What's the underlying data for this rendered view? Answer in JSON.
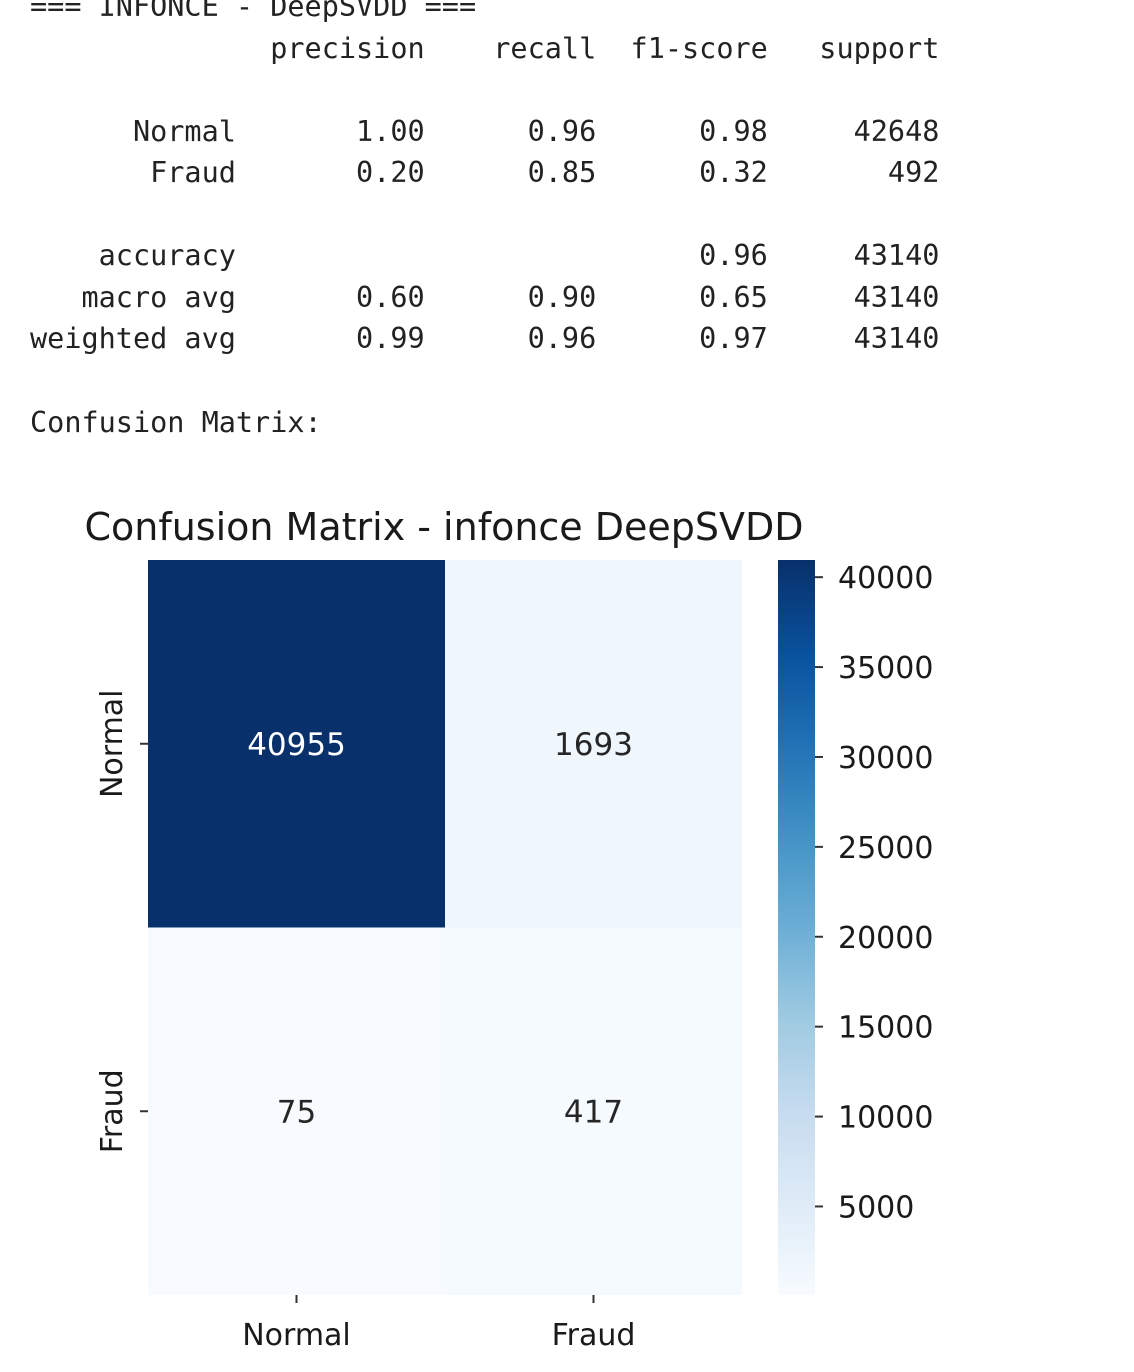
{
  "report": {
    "header": "=== INFONCE - DeepSVDD ===",
    "columns": [
      "precision",
      "recall",
      "f1-score",
      "support"
    ],
    "rows": [
      {
        "label": "Normal",
        "precision": "1.00",
        "recall": "0.96",
        "f1": "0.98",
        "support": "42648"
      },
      {
        "label": "Fraud",
        "precision": "0.20",
        "recall": "0.85",
        "f1": "0.32",
        "support": "492"
      },
      {
        "label": "",
        "precision": "",
        "recall": "",
        "f1": "",
        "support": ""
      },
      {
        "label": "accuracy",
        "precision": "",
        "recall": "",
        "f1": "0.96",
        "support": "43140"
      },
      {
        "label": "macro avg",
        "precision": "0.60",
        "recall": "0.90",
        "f1": "0.65",
        "support": "43140"
      },
      {
        "label": "weighted avg",
        "precision": "0.99",
        "recall": "0.96",
        "f1": "0.97",
        "support": "43140"
      }
    ],
    "confusion_label": "Confusion Matrix:"
  },
  "chart_data": {
    "type": "heatmap",
    "title": "Confusion Matrix - infonce DeepSVDD",
    "row_labels": [
      "Normal",
      "Fraud"
    ],
    "col_labels": [
      "Normal",
      "Fraud"
    ],
    "values": [
      [
        40955,
        1693
      ],
      [
        75,
        417
      ]
    ],
    "colormap": "Blues",
    "colorbar": {
      "ticks": [
        5000,
        10000,
        15000,
        20000,
        25000,
        30000,
        35000,
        40000
      ],
      "range": [
        75,
        40955
      ]
    }
  }
}
